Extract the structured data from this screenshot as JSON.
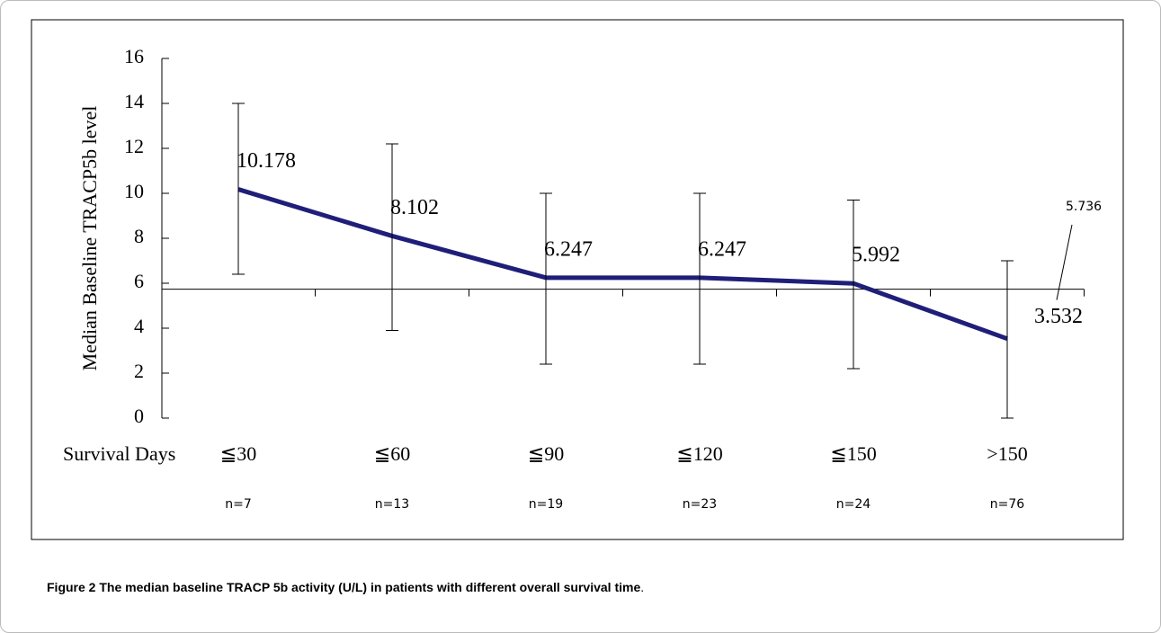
{
  "chart_data": {
    "type": "line",
    "y_label": "Median Baseline TRACP5b level",
    "x_label": "Survival Days",
    "categories": [
      "≦30",
      "≦60",
      "≦90",
      "≦120",
      "≦150",
      ">150"
    ],
    "sample_sizes": [
      "n=7",
      "n=13",
      "n=19",
      "n=23",
      "n=24",
      "n=76"
    ],
    "series": [
      {
        "name": "Median",
        "color": "#1f1f7a",
        "values": [
          10.178,
          8.102,
          6.247,
          6.247,
          5.992,
          3.532
        ],
        "lower": [
          6.4,
          3.9,
          2.4,
          2.4,
          2.2,
          0
        ],
        "upper": [
          14,
          12.2,
          10,
          10,
          9.7,
          7
        ]
      }
    ],
    "axis_crossing": 5.736,
    "ylim": [
      0,
      16
    ],
    "yticks": [
      0,
      2,
      4,
      6,
      8,
      10,
      12,
      14,
      16
    ]
  },
  "caption": {
    "label": "Figure 2",
    "text": "The median baseline TRACP 5b activity (U/L) in patients with different overall survival time",
    "end": "."
  }
}
